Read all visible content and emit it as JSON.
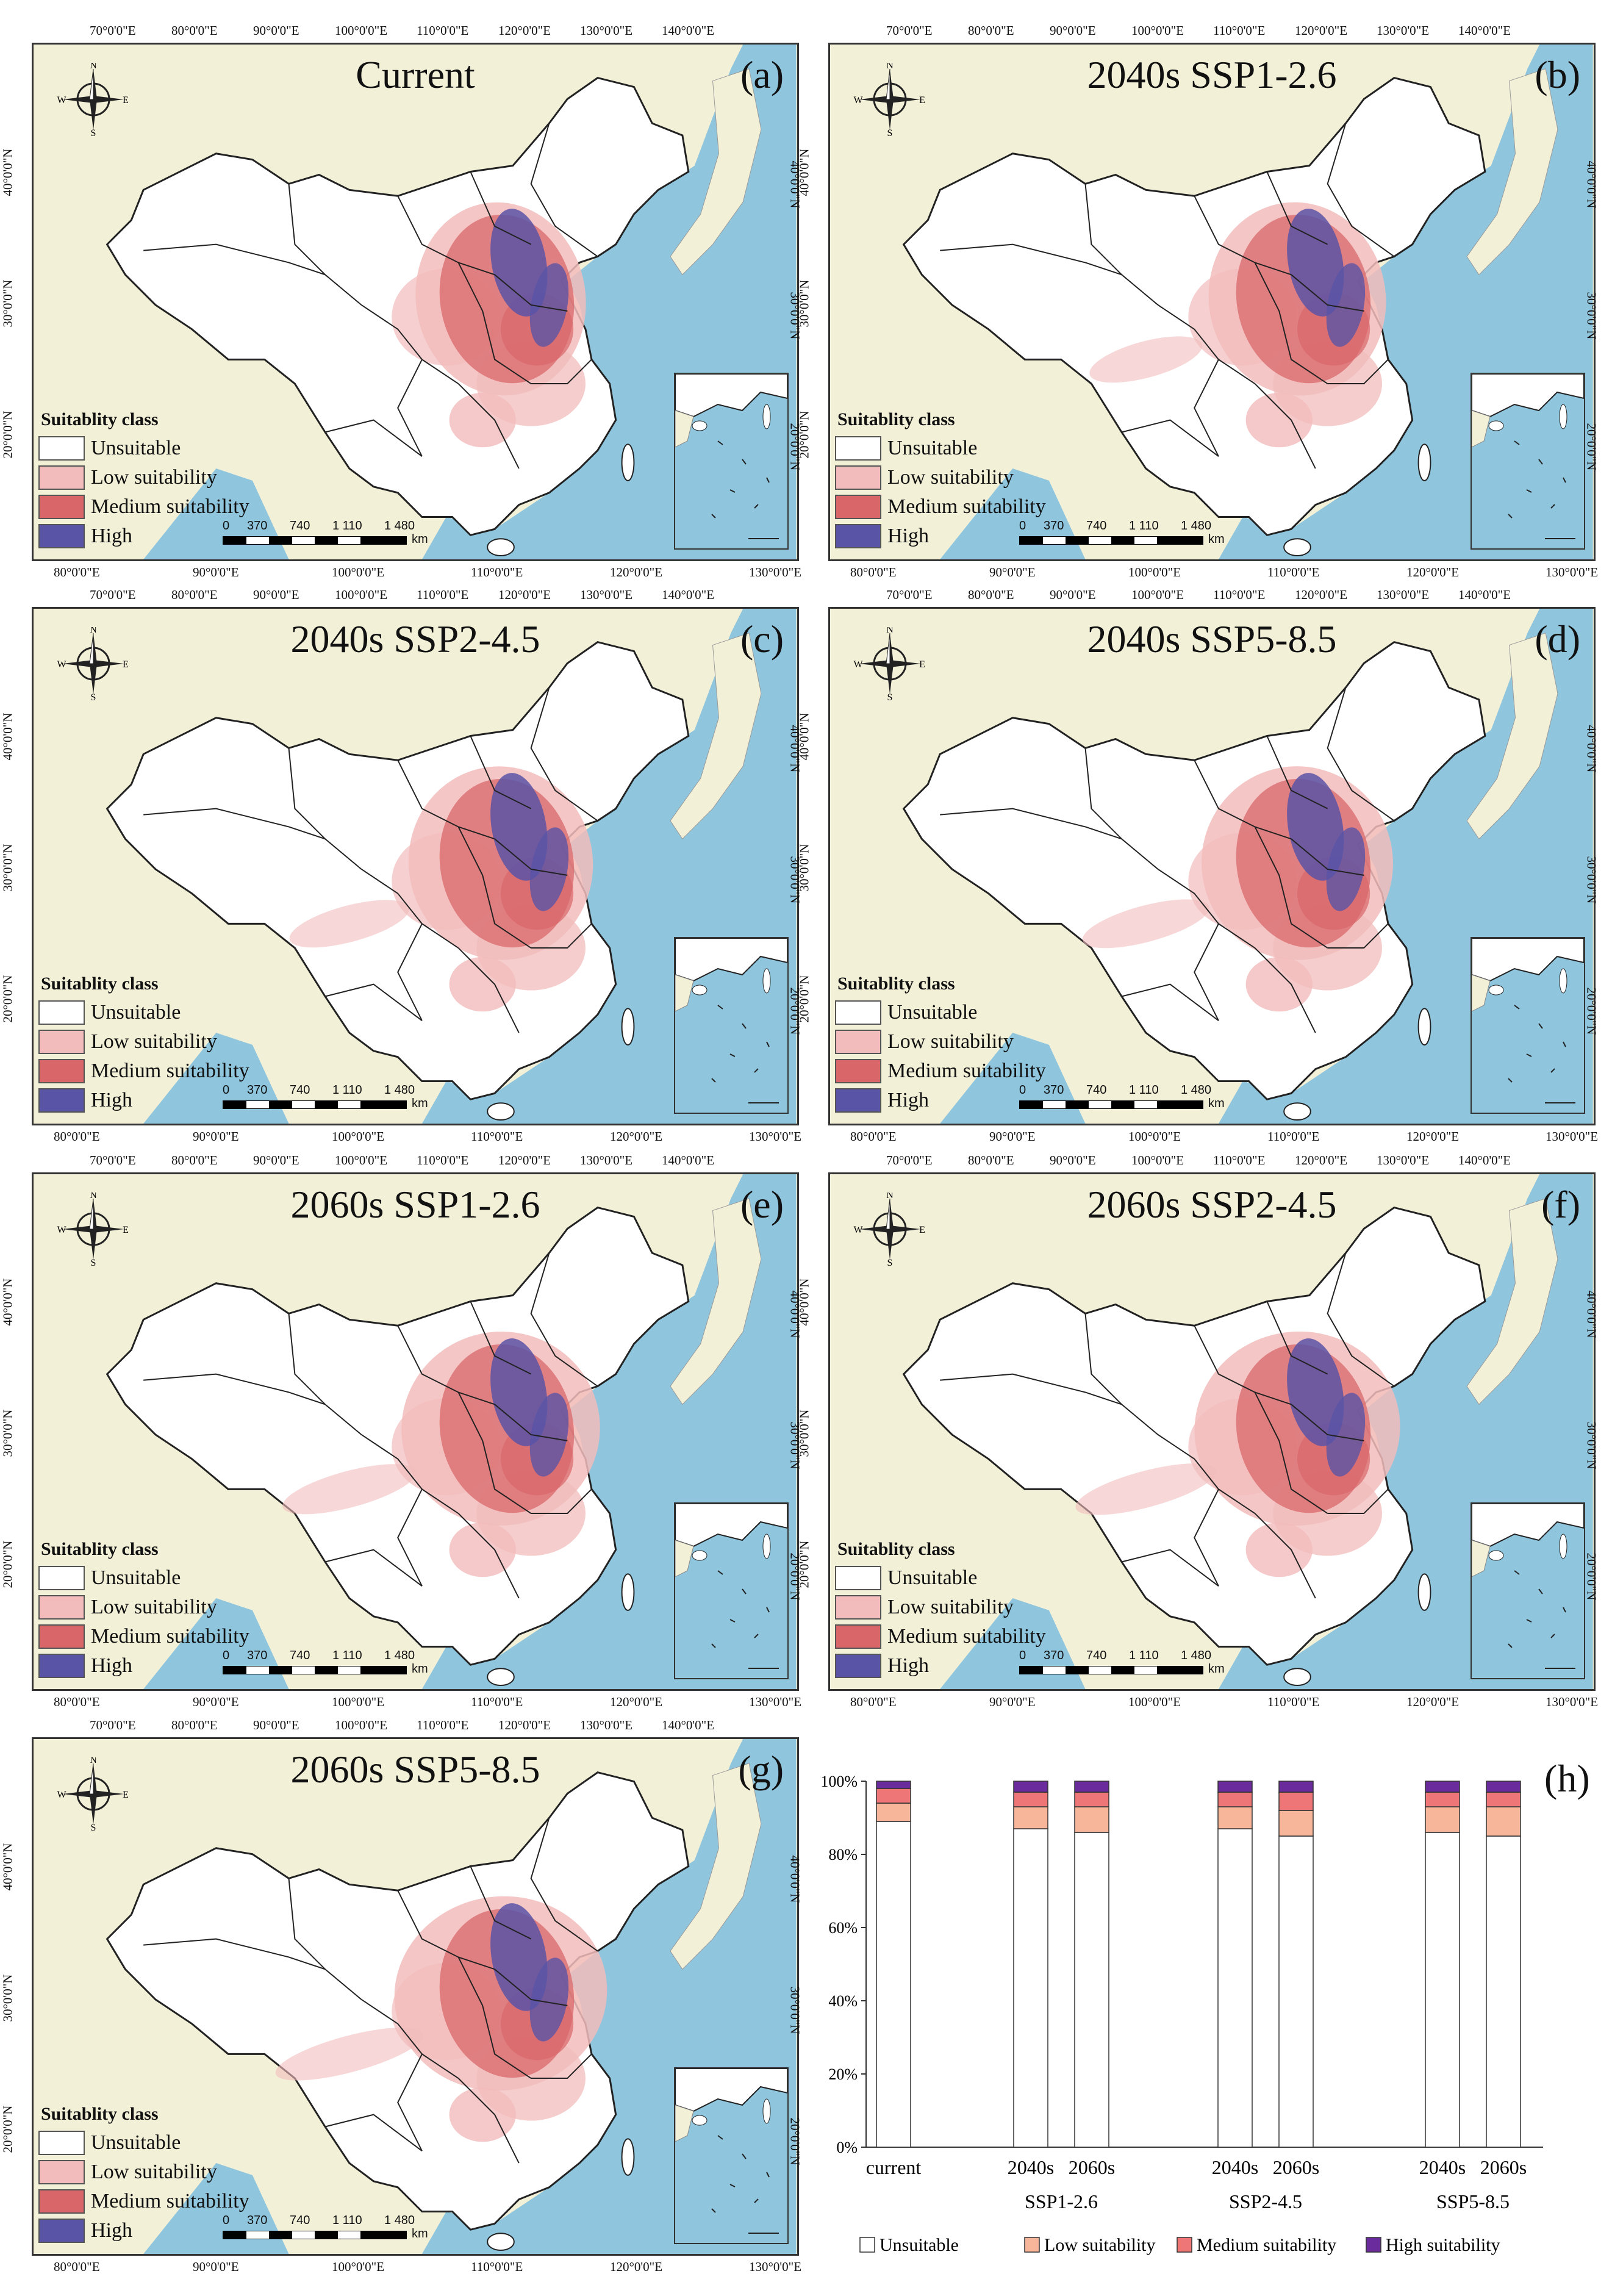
{
  "panels": [
    {
      "id": "a",
      "title": "Current",
      "label": "(a)",
      "legend_title": "Suitablity class"
    },
    {
      "id": "b",
      "title": "2040s SSP1-2.6",
      "label": "(b)",
      "legend_title": "Suitablity class"
    },
    {
      "id": "c",
      "title": "2040s SSP2-4.5",
      "label": "(c)",
      "legend_title": "Suitablity class"
    },
    {
      "id": "d",
      "title": "2040s SSP5-8.5",
      "label": "(d)",
      "legend_title": "Suitablity class"
    },
    {
      "id": "e",
      "title": "2060s SSP1-2.6",
      "label": "(e)",
      "legend_title": "Suitablity class"
    },
    {
      "id": "f",
      "title": "2060s SSP2-4.5",
      "label": "(f)",
      "legend_title": "Suitablity class"
    },
    {
      "id": "g",
      "title": "2060s SSP5-8.5",
      "label": "(g)",
      "legend_title": "Suitablity class"
    }
  ],
  "legend_items": [
    {
      "label": "Unsuitable",
      "color": "#ffffff"
    },
    {
      "label": "Low suitability",
      "color": "#f2bcbc"
    },
    {
      "label": "Medium suitability",
      "color": "#d9676a"
    },
    {
      "label": "High",
      "color": "#5a54a6"
    }
  ],
  "compass": {
    "n": "N",
    "s": "S",
    "e": "E",
    "w": "W"
  },
  "scale_bar": {
    "ticks": [
      "0",
      "370",
      "740",
      "1 110",
      "1 480"
    ],
    "unit": "km"
  },
  "top_lon_labels": [
    "70°0'0\"E",
    "80°0'0\"E",
    "90°0'0\"E",
    "100°0'0\"E",
    "110°0'0\"E",
    "120°0'0\"E",
    "130°0'0\"E",
    "140°0'0\"E"
  ],
  "bottom_lon_labels": [
    "80°0'0\"E",
    "90°0'0\"E",
    "100°0'0\"E",
    "110°0'0\"E",
    "120°0'0\"E",
    "130°0'0\"E"
  ],
  "left_lat_labels": [
    "40°0'0\"N",
    "30°0'0\"N",
    "20°0'0\"N"
  ],
  "right_lat_labels": [
    "40°0'0\"N",
    "30°0'0\"N",
    "20°0'0\"N"
  ],
  "colors": {
    "sea": "#8fc6de",
    "land_bg": "#f3f0d8",
    "china": "#ffffff",
    "low": "#f2bcbc",
    "medium": "#d9676a",
    "high": "#5a54a6"
  },
  "chart_label": "(h)",
  "chart_data": {
    "type": "bar",
    "stacked": true,
    "categories": [
      "current",
      "2040s",
      "2060s",
      "2040s",
      "2060s",
      "2040s",
      "2060s"
    ],
    "groups": [
      {
        "label": "",
        "members": [
          0
        ]
      },
      {
        "label": "SSP1-2.6",
        "members": [
          1,
          2
        ]
      },
      {
        "label": "SSP2-4.5",
        "members": [
          3,
          4
        ]
      },
      {
        "label": "SSP5-8.5",
        "members": [
          5,
          6
        ]
      }
    ],
    "series": [
      {
        "name": "Unsuitable",
        "color": "#ffffff",
        "values": [
          89,
          87,
          86,
          87,
          85,
          86,
          85
        ]
      },
      {
        "name": "Low suitability",
        "color": "#f7b69a",
        "values": [
          5,
          6,
          7,
          6,
          7,
          7,
          8
        ]
      },
      {
        "name": "Medium suitability",
        "color": "#ef7676",
        "values": [
          4,
          4,
          4,
          4,
          5,
          4,
          4
        ]
      },
      {
        "name": "High suitability",
        "color": "#6a2c9c",
        "values": [
          2,
          3,
          3,
          3,
          3,
          3,
          3
        ]
      }
    ],
    "yticks": [
      "0%",
      "20%",
      "40%",
      "60%",
      "80%",
      "100%"
    ],
    "ylim": [
      0,
      100
    ]
  }
}
